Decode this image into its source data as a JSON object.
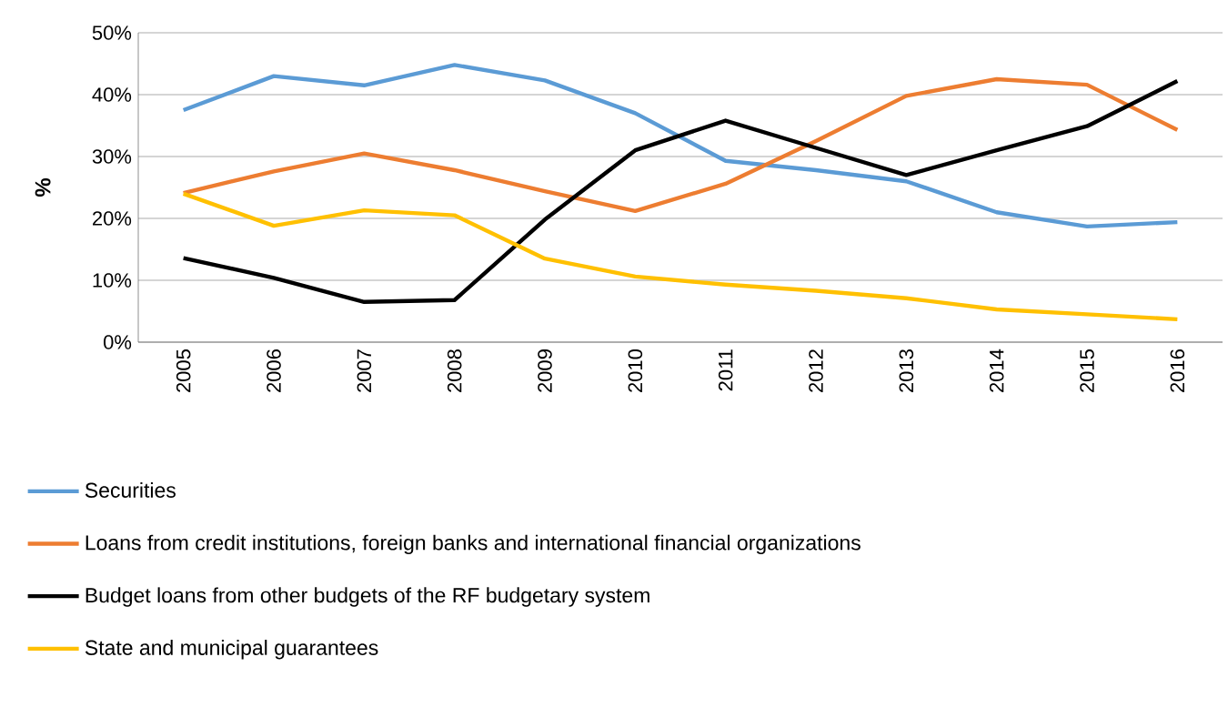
{
  "chart_data": {
    "type": "line",
    "ylabel": "%",
    "categories": [
      "2005",
      "2006",
      "2007",
      "2008",
      "2009",
      "2010",
      "2011",
      "2012",
      "2013",
      "2014",
      "2015",
      "2016"
    ],
    "ylim": [
      0,
      50
    ],
    "yticks": [
      {
        "value": 0,
        "label": "0%"
      },
      {
        "value": 10,
        "label": "10%"
      },
      {
        "value": 20,
        "label": "20%"
      },
      {
        "value": 30,
        "label": "30%"
      },
      {
        "value": 40,
        "label": "40%"
      },
      {
        "value": 50,
        "label": "50%"
      }
    ],
    "grid": "y",
    "legend": "bottom",
    "marker": "none",
    "line_style": "solid",
    "series": [
      {
        "name": "Securities",
        "color": "#5b9bd5",
        "values": [
          37.5,
          43,
          41.5,
          44.8,
          42.3,
          37,
          29.3,
          27.8,
          26,
          21,
          18.7,
          19.4
        ]
      },
      {
        "name": "Loans from credit institutions, foreign banks and international financial organizations",
        "color": "#ed7d31",
        "values": [
          24.1,
          27.6,
          30.5,
          27.8,
          24.4,
          21.2,
          25.6,
          32.5,
          39.8,
          42.5,
          41.6,
          34.3
        ]
      },
      {
        "name": "Budget loans from other budgets of the RF budgetary system",
        "color": "#000000",
        "values": [
          13.6,
          10.4,
          6.5,
          6.8,
          19.8,
          31,
          35.8,
          31.4,
          27,
          31,
          34.9,
          42.2
        ]
      },
      {
        "name": "State and municipal guarantees",
        "color": "#ffc000",
        "values": [
          24,
          18.8,
          21.3,
          20.5,
          13.5,
          10.6,
          9.3,
          8.3,
          7.1,
          5.3,
          4.5,
          3.7
        ]
      }
    ]
  }
}
